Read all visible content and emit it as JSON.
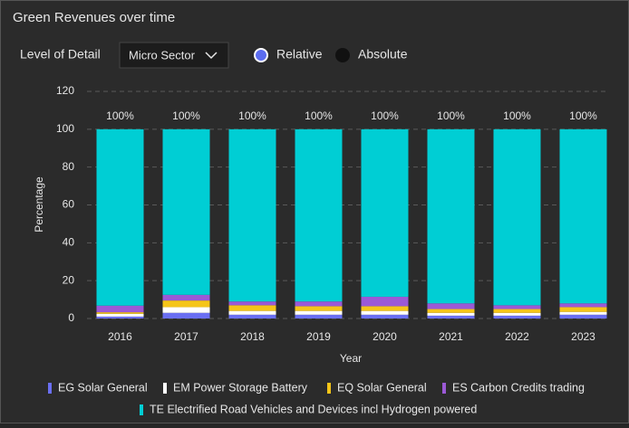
{
  "header": {
    "title": "Green Revenues over time"
  },
  "controls": {
    "level_label": "Level of Detail",
    "dropdown_value": "Micro Sector",
    "options": [
      "Relative",
      "Absolute"
    ]
  },
  "chart_data": {
    "type": "stacked_bar",
    "x_label": "Year",
    "y_label": "Percentage",
    "categories": [
      "2016",
      "2017",
      "2018",
      "2019",
      "2020",
      "2021",
      "2022",
      "2023"
    ],
    "series": [
      {
        "name": "EG Solar General",
        "color": "#6a6ff2",
        "values": [
          1.0,
          3.0,
          2.0,
          2.0,
          2.0,
          1.5,
          1.5,
          2.0
        ]
      },
      {
        "name": "EM Power Storage Battery",
        "color": "#ffffff",
        "values": [
          1.5,
          3.0,
          2.0,
          2.0,
          2.0,
          1.5,
          1.5,
          1.5
        ]
      },
      {
        "name": "EQ Solar General",
        "color": "#f5c518",
        "values": [
          0.8,
          3.5,
          3.0,
          2.5,
          2.5,
          2.0,
          2.0,
          2.5
        ]
      },
      {
        "name": "ES Carbon Credits trading",
        "color": "#9b59d6",
        "values": [
          3.5,
          3.0,
          2.0,
          2.5,
          5.0,
          3.0,
          2.0,
          2.0
        ]
      },
      {
        "name": "TE Electrified Road Vehicles and Devices incl Hydrogen powered",
        "color": "#00ced4",
        "values": [
          93.2,
          87.5,
          91.0,
          91.0,
          88.5,
          92.0,
          93.0,
          92.0
        ]
      }
    ],
    "totals": [
      100,
      100,
      100,
      100,
      100,
      100,
      100,
      100
    ],
    "total_labels": [
      "100%",
      "100%",
      "100%",
      "100%",
      "100%",
      "100%",
      "100%",
      "100%"
    ],
    "ylim": [
      0,
      120
    ],
    "yticks": [
      0,
      20,
      40,
      60,
      80,
      100,
      120
    ],
    "grid": true
  }
}
